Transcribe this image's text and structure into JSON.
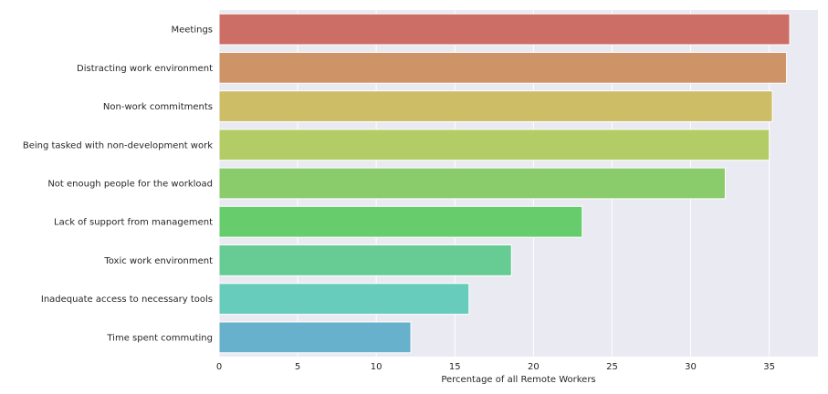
{
  "chart_data": {
    "type": "bar",
    "orientation": "horizontal",
    "categories": [
      "Meetings",
      "Distracting work environment",
      "Non-work commitments",
      "Being tasked with non-development work",
      "Not enough people for the workload",
      "Lack of support from management",
      "Toxic work environment",
      "Inadequate access to necessary tools",
      "Time spent commuting"
    ],
    "values": [
      36.3,
      36.1,
      35.2,
      35.0,
      32.2,
      23.1,
      18.6,
      15.9,
      12.2
    ],
    "colors": [
      "#cc6d66",
      "#ce9467",
      "#cebd67",
      "#b3cc66",
      "#8acc6b",
      "#66cc6c",
      "#66cc94",
      "#68ccbc",
      "#68b1cc"
    ],
    "xlabel": "Percentage of all Remote Workers",
    "ylabel": "",
    "xlim": [
      0,
      38.1
    ],
    "xticks": [
      0,
      5,
      10,
      15,
      20,
      25,
      30,
      35
    ],
    "grid": true,
    "legend": "none"
  }
}
